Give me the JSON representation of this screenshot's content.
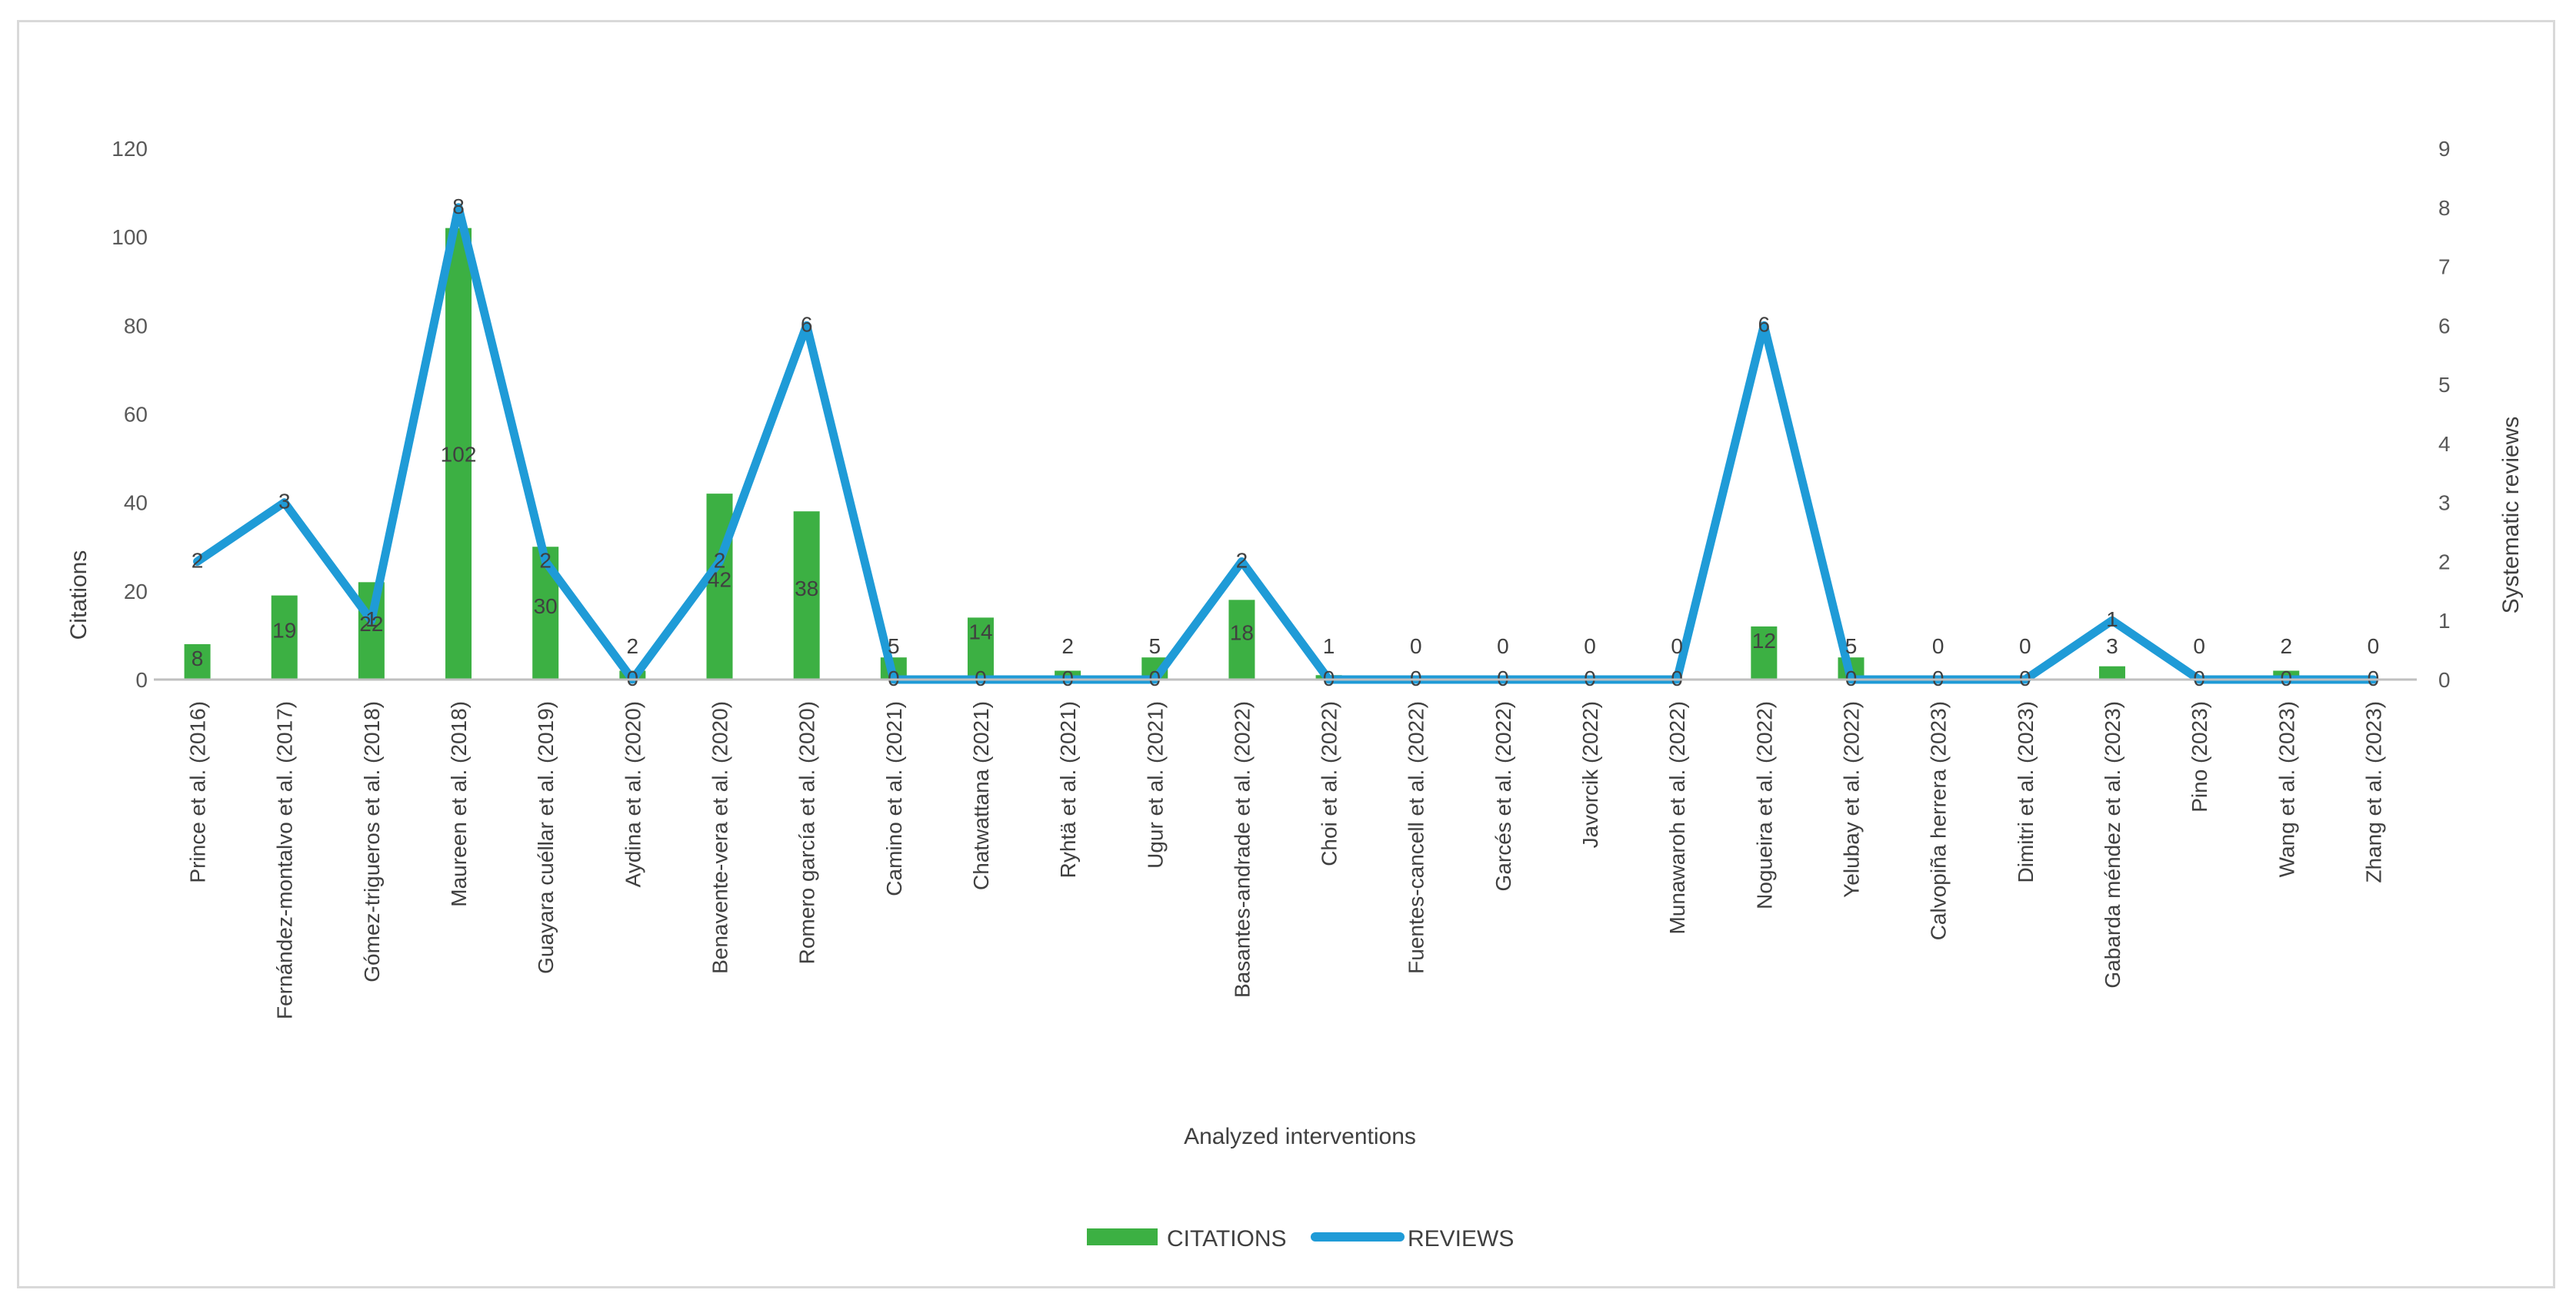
{
  "colors": {
    "bar": "#3cb043",
    "bar_light": "#5cc85f",
    "line": "#1f9bd7",
    "axis": "#bfbfbf"
  },
  "chart_data": {
    "type": "bar",
    "xlabel": "Analyzed interventions",
    "ylabel": "Citations",
    "y2label": "Systematic reviews",
    "ylim": [
      0,
      120
    ],
    "yticks": [
      0,
      20,
      40,
      60,
      80,
      100,
      120
    ],
    "y2lim": [
      0,
      9
    ],
    "y2ticks": [
      0,
      1,
      2,
      3,
      4,
      5,
      6,
      7,
      8,
      9
    ],
    "legend_position": "bottom",
    "categories": [
      "Prince et al. (2016)",
      "Fernández-montalvo et al. (2017)",
      "Gómez-trigueros et al. (2018)",
      "Maureen et al. (2018)",
      "Guayara cuéllar et al. (2019)",
      "Aydina et al. (2020)",
      "Benavente-vera et al. (2020)",
      "Romero garcía et al. (2020)",
      "Camino et al. (2021)",
      "Chatwattana (2021)",
      "Ryhtä et al. (2021)",
      "Ugur et al. (2021)",
      "Basantes-andrade et al. (2022)",
      "Choi et al. (2022)",
      "Fuentes-cancell et al. (2022)",
      "Garcés et al. (2022)",
      "Javorcik (2022)",
      "Munawaroh et al. (2022)",
      "Nogueira et al. (2022)",
      "Yelubay et al. (2022)",
      "Calvopiña herrera (2023)",
      "Dimitri et al. (2023)",
      "Gabarda méndez et al. (2023)",
      "Pino (2023)",
      "Wang et al. (2023)",
      "Zhang et al. (2023)"
    ],
    "series": [
      {
        "name": "CITATIONS",
        "type": "bar",
        "axis": "left",
        "values": [
          8,
          19,
          22,
          102,
          30,
          2,
          42,
          38,
          5,
          14,
          2,
          5,
          18,
          1,
          0,
          0,
          0,
          0,
          12,
          5,
          0,
          0,
          3,
          0,
          2,
          0
        ]
      },
      {
        "name": "REVIEWS",
        "type": "line",
        "axis": "right",
        "values": [
          2,
          3,
          1,
          8,
          2,
          0,
          2,
          6,
          0,
          0,
          0,
          0,
          2,
          0,
          0,
          0,
          0,
          0,
          6,
          0,
          0,
          0,
          1,
          0,
          0,
          0
        ]
      }
    ]
  }
}
